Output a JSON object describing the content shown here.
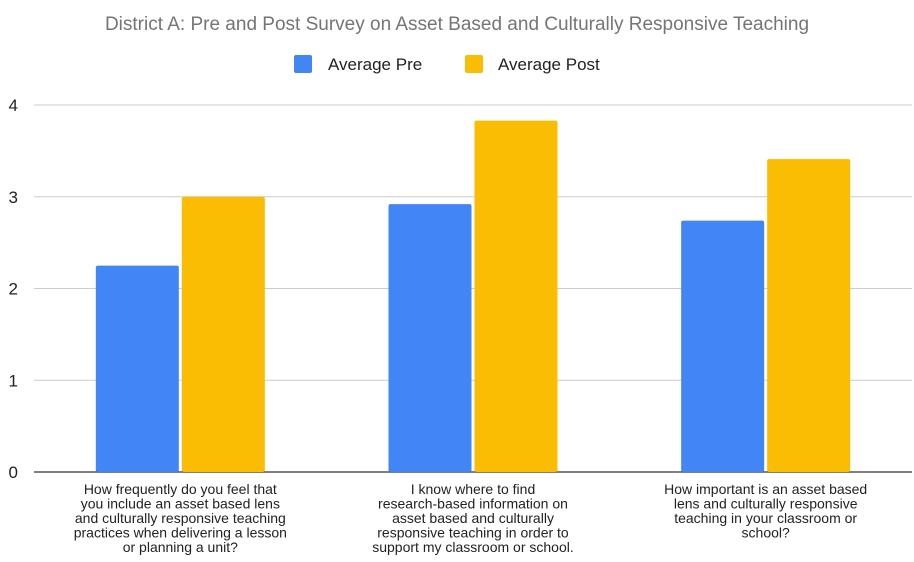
{
  "chart_data": {
    "type": "bar",
    "title": "District A: Pre and Post Survey on Asset Based and Culturally Responsive Teaching",
    "xlabel": "",
    "ylabel": "",
    "ylim": [
      0,
      4
    ],
    "yticks": [
      "0",
      "1",
      "2",
      "3",
      "4"
    ],
    "grid": true,
    "legend_position": "top",
    "categories": [
      "How frequently do you feel that you include an asset based lens and culturally responsive teaching practices when delivering a lesson or planning a unit?",
      "I know where to find research-based information on asset based and culturally responsive teaching in order to support my classroom or school.",
      "How important is an asset based lens and culturally responsive teaching in your classroom or school?"
    ],
    "category_lines": [
      [
        "How frequently do you feel that",
        "you include an asset based lens",
        "and culturally responsive teaching",
        "practices when delivering a lesson",
        "or planning a unit?"
      ],
      [
        "I know where to find",
        "research-based information on",
        "asset based and culturally",
        "responsive teaching in order to",
        "support my classroom or school."
      ],
      [
        "How important is an asset based",
        "lens and culturally responsive",
        "teaching in your classroom or",
        "school?"
      ]
    ],
    "series": [
      {
        "name": "Average Pre",
        "color": "#4285f4",
        "values": [
          2.25,
          2.92,
          2.74
        ]
      },
      {
        "name": "Average Post",
        "color": "#fbbc04",
        "values": [
          3.0,
          3.83,
          3.41
        ]
      }
    ]
  }
}
